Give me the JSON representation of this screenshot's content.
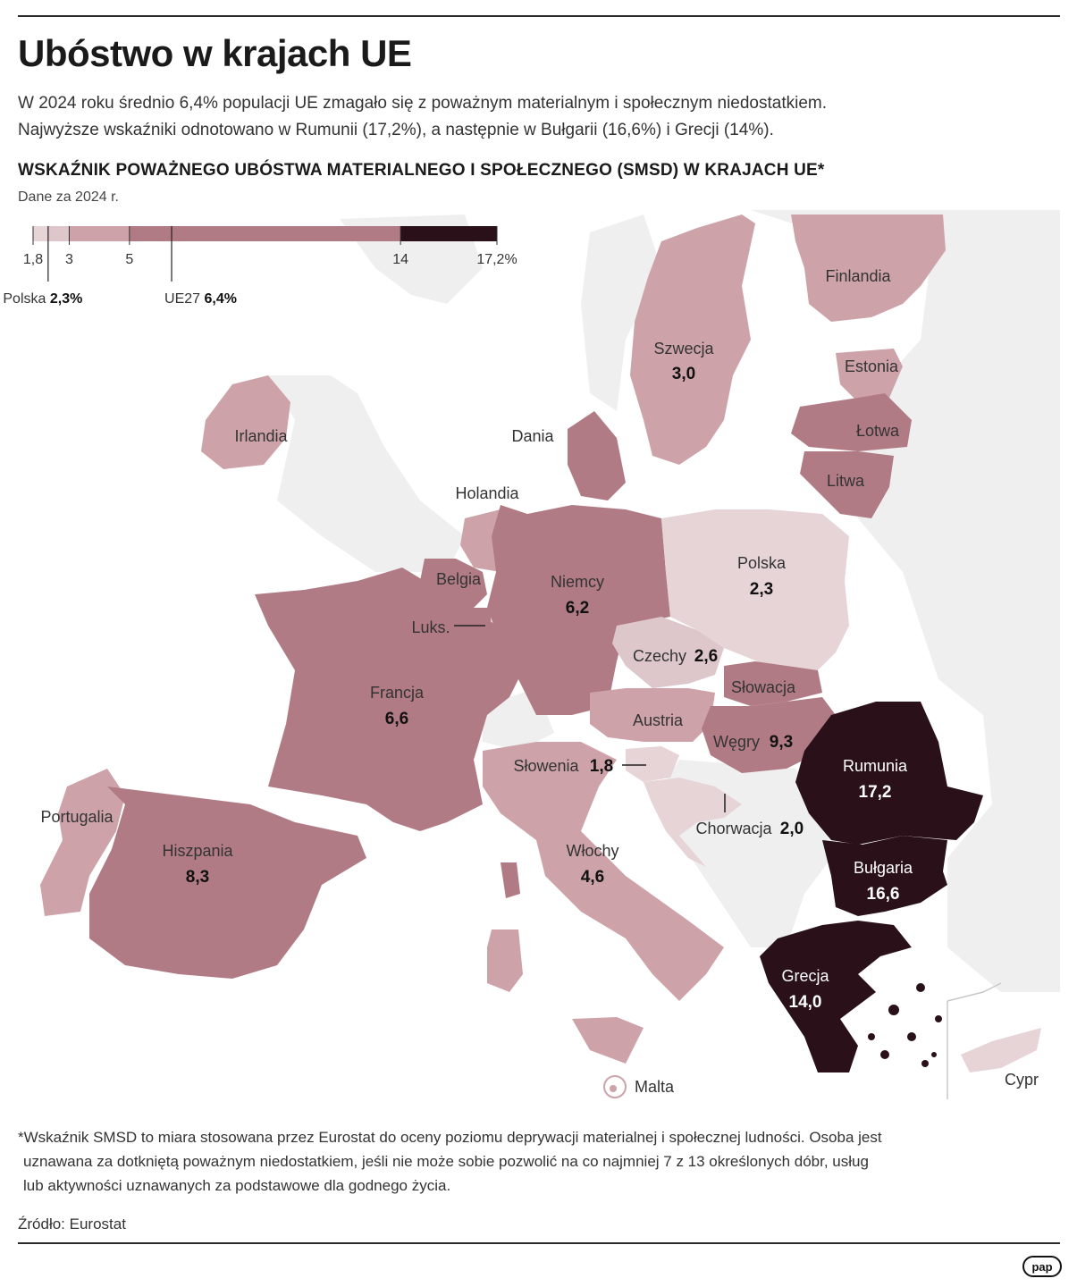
{
  "title": "Ubóstwo w krajach UE",
  "lead": [
    "W 2024 roku średnio 6,4% populacji UE zmagało się z poważnym materialnym i społecznym niedostatkiem.",
    "Najwyższe wskaźniki odnotowano w Rumunii (17,2%), a następnie w Bułgarii (16,6%) i Grecji (14%)."
  ],
  "chart": {
    "heading": "WSKAŹNIK POWAŻNEGO UBÓSTWA MATERIALNEGO I SPOŁECZNEGO (SMSD) W KRAJACH UE*",
    "subheading": "Dane za 2024 r."
  },
  "legend": {
    "classes": [
      {
        "from": 1.8,
        "to": 2.3,
        "color": "#e6d4d6"
      },
      {
        "from": 2.3,
        "to": 3,
        "color": "#ddc7ca"
      },
      {
        "from": 3,
        "to": 5,
        "color": "#cda3a9"
      },
      {
        "from": 5,
        "to": 14,
        "color": "#b17b85"
      },
      {
        "from": 14,
        "to": 17.2,
        "color": "#2a1119"
      }
    ],
    "ticks": [
      "1,8",
      "3",
      "5",
      "14",
      "17,2%"
    ],
    "markers": [
      {
        "name": "Polska",
        "value_label": "2,3%",
        "value": 2.3
      },
      {
        "name": "UE27",
        "value_label": "6,4%",
        "value": 6.4
      }
    ]
  },
  "countries": [
    {
      "id": "finlandia",
      "name": "Finlandia",
      "value": ""
    },
    {
      "id": "szwecja",
      "name": "Szwecja",
      "value": "3,0"
    },
    {
      "id": "estonia",
      "name": "Estonia",
      "value": ""
    },
    {
      "id": "lotwa",
      "name": "Łotwa",
      "value": ""
    },
    {
      "id": "litwa",
      "name": "Litwa",
      "value": ""
    },
    {
      "id": "irlandia",
      "name": "Irlandia",
      "value": ""
    },
    {
      "id": "dania",
      "name": "Dania",
      "value": ""
    },
    {
      "id": "holandia",
      "name": "Holandia",
      "value": ""
    },
    {
      "id": "belgia",
      "name": "Belgia",
      "value": ""
    },
    {
      "id": "luks",
      "name": "Luks.",
      "value": ""
    },
    {
      "id": "niemcy",
      "name": "Niemcy",
      "value": "6,2"
    },
    {
      "id": "polska",
      "name": "Polska",
      "value": "2,3"
    },
    {
      "id": "czechy",
      "name": "Czechy",
      "value": "2,6"
    },
    {
      "id": "slowacja",
      "name": "Słowacja",
      "value": ""
    },
    {
      "id": "austria",
      "name": "Austria",
      "value": ""
    },
    {
      "id": "wegry",
      "name": "Węgry",
      "value": "9,3"
    },
    {
      "id": "francja",
      "name": "Francja",
      "value": "6,6"
    },
    {
      "id": "slowenia",
      "name": "Słowenia",
      "value": "1,8"
    },
    {
      "id": "rumunia",
      "name": "Rumunia",
      "value": "17,2"
    },
    {
      "id": "chorwacja",
      "name": "Chorwacja",
      "value": "2,0"
    },
    {
      "id": "portugalia",
      "name": "Portugalia",
      "value": ""
    },
    {
      "id": "hiszpania",
      "name": "Hiszpania",
      "value": "8,3"
    },
    {
      "id": "wlochy",
      "name": "Włochy",
      "value": "4,6"
    },
    {
      "id": "bulgaria",
      "name": "Bułgaria",
      "value": "16,6"
    },
    {
      "id": "grecja",
      "name": "Grecja",
      "value": "14,0"
    },
    {
      "id": "malta",
      "name": "Malta",
      "value": ""
    },
    {
      "id": "cypr",
      "name": "Cypr",
      "value": ""
    }
  ],
  "colors": {
    "lightest": "#e6d4d6",
    "light": "#ddc7ca",
    "medium": "#cda3a9",
    "dark": "#b17b85",
    "darkest": "#2a1119",
    "non_eu": "#efefef"
  },
  "footnote": [
    "*Wskaźnik SMSD to miara stosowana przez Eurostat do oceny poziomu deprywacji materialnej i społecznej ludności. Osoba jest",
    "uznawana za dotkniętą poważnym niedostatkiem, jeśli nie może sobie pozwolić na co najmniej 7 z 13 określonych dóbr, usług",
    "lub aktywności uznawanych za podstawowe dla godnego życia."
  ],
  "source": "Źródło: Eurostat",
  "logo": "pap"
}
